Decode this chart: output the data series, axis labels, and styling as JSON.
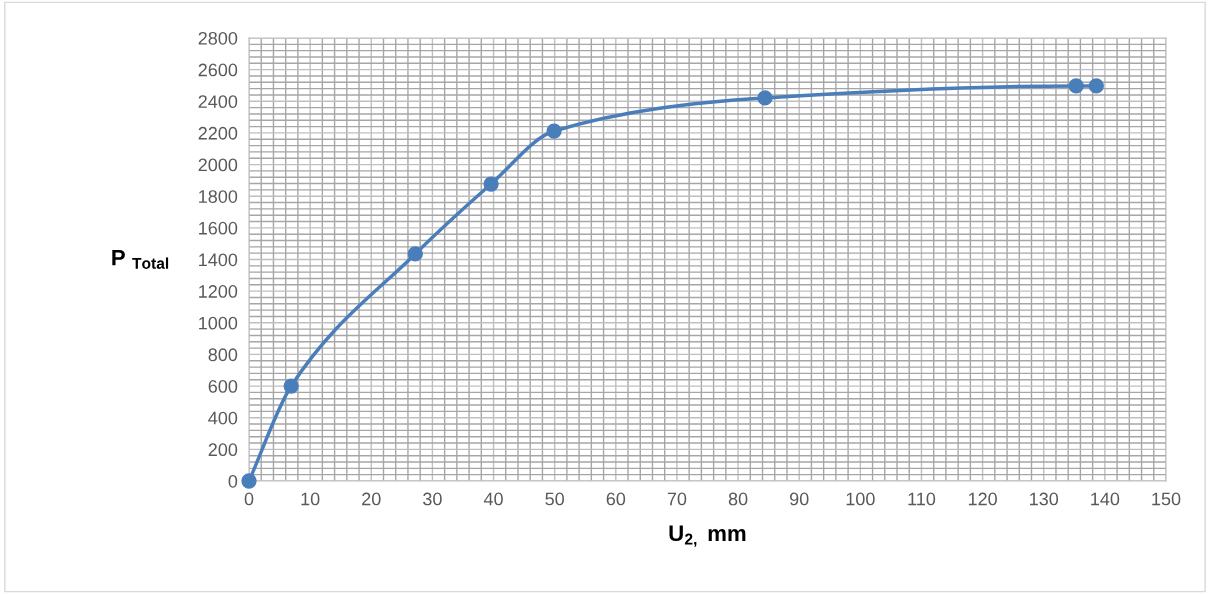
{
  "chart_data": {
    "type": "line",
    "xlabel": "U$_{2,}$ mm",
    "ylabel": "P $_{Total}$",
    "series": [
      {
        "color": "#4a7ebb",
        "x": [
          0,
          6.9,
          27.2,
          39.6,
          49.9,
          84.4,
          135.3,
          138.6
        ],
        "values": [
          0,
          600,
          1435,
          1877,
          2212,
          2421,
          2497,
          2497
        ]
      }
    ],
    "xlim": [
      0,
      150
    ],
    "xticks": [
      0,
      10,
      20,
      30,
      40,
      50,
      60,
      70,
      80,
      90,
      100,
      110,
      120,
      130,
      140,
      150
    ],
    "ylim": [
      0,
      2800
    ],
    "yticks": [
      0,
      200,
      400,
      600,
      800,
      1000,
      1200,
      1400,
      1600,
      1800,
      2000,
      2200,
      2400,
      2600,
      2800
    ],
    "grid": true,
    "marker": "circle",
    "line_style": "solid"
  }
}
